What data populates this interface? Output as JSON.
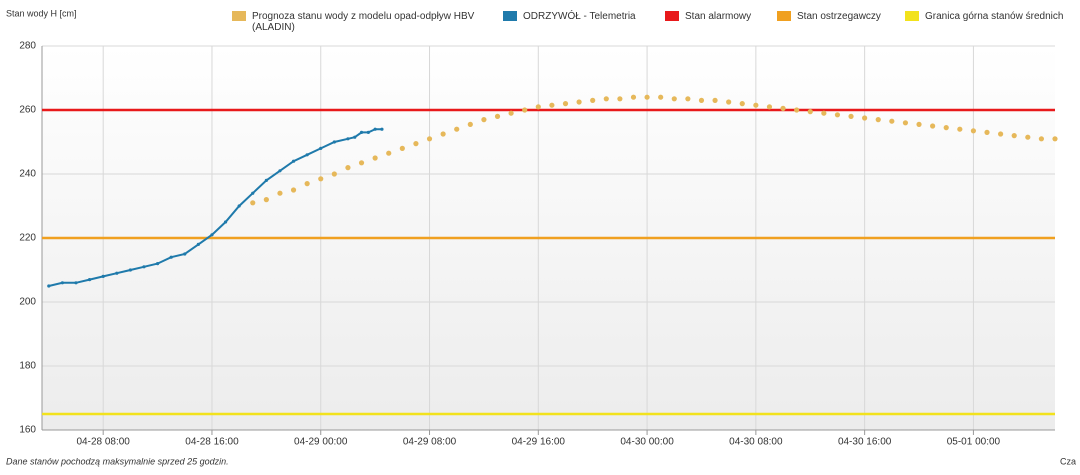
{
  "chart_data": {
    "type": "line",
    "y_label": "Stan wody H [cm]",
    "footnote": "Dane stanów pochodzą maksymalnie sprzed 25 godzin.",
    "corner_text": "Cza",
    "ylim": [
      160,
      280
    ],
    "yticks": [
      160,
      180,
      200,
      220,
      240,
      260,
      280
    ],
    "xlim": [
      "04-28 03:30",
      "05-01 06:00"
    ],
    "xticks": [
      "04-28 08:00",
      "04-28 16:00",
      "04-29 00:00",
      "04-29 08:00",
      "04-29 16:00",
      "04-30 00:00",
      "04-30 08:00",
      "04-30 16:00",
      "05-01 00:00"
    ],
    "grid": true,
    "series": [
      {
        "name": "Prognoza stanu wody z modelu opad-odpływ HBV (ALADIN)",
        "color": "#e6b85a",
        "style": "dots",
        "x": [
          "04-28 19:00",
          "04-28 20:00",
          "04-28 21:00",
          "04-28 22:00",
          "04-28 23:00",
          "04-29 00:00",
          "04-29 01:00",
          "04-29 02:00",
          "04-29 03:00",
          "04-29 04:00",
          "04-29 05:00",
          "04-29 06:00",
          "04-29 07:00",
          "04-29 08:00",
          "04-29 09:00",
          "04-29 10:00",
          "04-29 11:00",
          "04-29 12:00",
          "04-29 13:00",
          "04-29 14:00",
          "04-29 15:00",
          "04-29 16:00",
          "04-29 17:00",
          "04-29 18:00",
          "04-29 19:00",
          "04-29 20:00",
          "04-29 21:00",
          "04-29 22:00",
          "04-29 23:00",
          "04-30 00:00",
          "04-30 01:00",
          "04-30 02:00",
          "04-30 03:00",
          "04-30 04:00",
          "04-30 05:00",
          "04-30 06:00",
          "04-30 07:00",
          "04-30 08:00",
          "04-30 09:00",
          "04-30 10:00",
          "04-30 11:00",
          "04-30 12:00",
          "04-30 13:00",
          "04-30 14:00",
          "04-30 15:00",
          "04-30 16:00",
          "04-30 17:00",
          "04-30 18:00",
          "04-30 19:00",
          "04-30 20:00",
          "04-30 21:00",
          "04-30 22:00",
          "04-30 23:00",
          "05-01 00:00",
          "05-01 01:00",
          "05-01 02:00",
          "05-01 03:00",
          "05-01 04:00",
          "05-01 05:00",
          "05-01 06:00"
        ],
        "values": [
          231,
          232,
          234,
          235,
          237,
          238.5,
          240,
          242,
          243.5,
          245,
          246.5,
          248,
          249.5,
          251,
          252.5,
          254,
          255.5,
          257,
          258,
          259,
          260,
          261,
          261.5,
          262,
          262.5,
          263,
          263.5,
          263.5,
          264,
          264,
          264,
          263.5,
          263.5,
          263,
          263,
          262.5,
          262,
          261.5,
          261,
          260.5,
          260,
          259.5,
          259,
          258.5,
          258,
          257.5,
          257,
          256.5,
          256,
          255.5,
          255,
          254.5,
          254,
          253.5,
          253,
          252.5,
          252,
          251.5,
          251,
          251
        ]
      },
      {
        "name": "ODRZYWÓŁ - Telemetria",
        "color": "#1f7aab",
        "style": "line",
        "x": [
          "04-28 04:00",
          "04-28 05:00",
          "04-28 06:00",
          "04-28 07:00",
          "04-28 08:00",
          "04-28 09:00",
          "04-28 10:00",
          "04-28 11:00",
          "04-28 12:00",
          "04-28 13:00",
          "04-28 14:00",
          "04-28 15:00",
          "04-28 16:00",
          "04-28 17:00",
          "04-28 18:00",
          "04-28 19:00",
          "04-28 20:00",
          "04-28 21:00",
          "04-28 22:00",
          "04-28 23:00",
          "04-29 00:00",
          "04-29 01:00",
          "04-29 02:00",
          "04-29 02:30",
          "04-29 03:00",
          "04-29 03:30",
          "04-29 04:00",
          "04-29 04:30"
        ],
        "values": [
          205,
          206,
          206,
          207,
          208,
          209,
          210,
          211,
          212,
          214,
          215,
          218,
          221,
          225,
          230,
          234,
          238,
          241,
          244,
          246,
          248,
          250,
          251,
          251.5,
          253,
          253,
          254,
          254
        ]
      }
    ],
    "reference_lines": [
      {
        "name": "Stan alarmowy",
        "color": "#e8191b",
        "value": 260
      },
      {
        "name": "Stan ostrzegawczy",
        "color": "#f0a020",
        "value": 220
      },
      {
        "name": "Granica górna stanów średnich",
        "color": "#f2e21c",
        "value": 165
      }
    ]
  }
}
